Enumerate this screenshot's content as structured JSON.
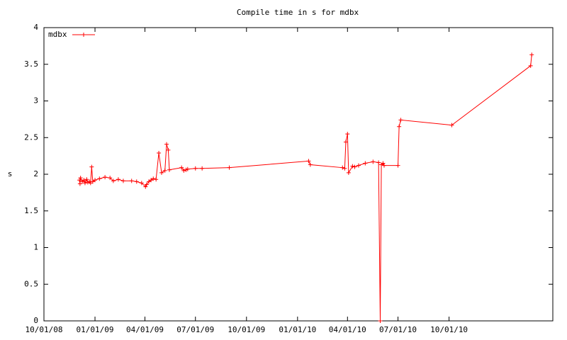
{
  "chart_data": {
    "type": "line",
    "title": "Compile time in s for mdbx",
    "y_label": "s",
    "x": [
      "2008-12-04",
      "2008-12-05",
      "2008-12-06",
      "2008-12-09",
      "2008-12-12",
      "2008-12-14",
      "2008-12-17",
      "2008-12-19",
      "2008-12-22",
      "2008-12-24",
      "2008-12-26",
      "2008-12-28",
      "2009-01-01",
      "2009-01-09",
      "2009-01-19",
      "2009-01-28",
      "2009-02-03",
      "2009-02-12",
      "2009-02-21",
      "2009-03-08",
      "2009-03-17",
      "2009-03-26",
      "2009-04-02",
      "2009-04-04",
      "2009-04-08",
      "2009-04-12",
      "2009-04-16",
      "2009-04-21",
      "2009-04-26",
      "2009-05-01",
      "2009-05-07",
      "2009-05-10",
      "2009-05-13",
      "2009-05-15",
      "2009-06-06",
      "2009-06-10",
      "2009-06-14",
      "2009-06-17",
      "2009-07-01",
      "2009-07-13",
      "2009-08-31",
      "2010-01-21",
      "2010-01-24",
      "2010-03-23",
      "2010-03-27",
      "2010-03-29",
      "2010-04-01",
      "2010-04-03",
      "2010-04-10",
      "2010-04-14",
      "2010-04-21",
      "2010-05-03",
      "2010-05-17",
      "2010-05-27",
      "2010-05-30",
      "2010-06-01",
      "2010-06-04",
      "2010-06-06",
      "2010-07-01",
      "2010-07-03",
      "2010-07-06",
      "2010-10-06",
      "2011-02-25",
      "2011-02-27"
    ],
    "series": [
      {
        "name": "mdbx",
        "color": "#ff0000",
        "values": [
          1.92,
          1.87,
          1.95,
          1.9,
          1.92,
          1.88,
          1.93,
          1.89,
          1.9,
          1.88,
          2.1,
          1.9,
          1.92,
          1.94,
          1.96,
          1.95,
          1.91,
          1.93,
          1.91,
          1.91,
          1.9,
          1.88,
          1.83,
          1.86,
          1.9,
          1.92,
          1.94,
          1.93,
          2.29,
          2.02,
          2.05,
          2.41,
          2.33,
          2.06,
          2.09,
          2.05,
          2.06,
          2.07,
          2.08,
          2.08,
          2.09,
          2.18,
          2.13,
          2.09,
          2.08,
          2.44,
          2.55,
          2.02,
          2.11,
          2.1,
          2.12,
          2.15,
          2.17,
          2.16,
          0,
          2.13,
          2.15,
          2.12,
          2.12,
          2.65,
          2.74,
          2.67,
          3.48,
          3.63
        ]
      }
    ],
    "xlim": [
      "2008-10-01",
      "2011-04-06"
    ],
    "xticks": [
      {
        "value": "2008-10-01",
        "label": "10/01/08"
      },
      {
        "value": "2009-01-01",
        "label": "01/01/09"
      },
      {
        "value": "2009-04-01",
        "label": "04/01/09"
      },
      {
        "value": "2009-07-01",
        "label": "07/01/09"
      },
      {
        "value": "2009-10-01",
        "label": "10/01/09"
      },
      {
        "value": "2010-01-01",
        "label": "01/01/10"
      },
      {
        "value": "2010-04-01",
        "label": "04/01/10"
      },
      {
        "value": "2010-07-01",
        "label": "07/01/10"
      },
      {
        "value": "2010-10-01",
        "label": "10/01/10"
      }
    ],
    "ylim": [
      0,
      4
    ],
    "yticks": [
      0,
      0.5,
      1,
      1.5,
      2,
      2.5,
      3,
      3.5,
      4
    ],
    "legend": "top-left"
  }
}
